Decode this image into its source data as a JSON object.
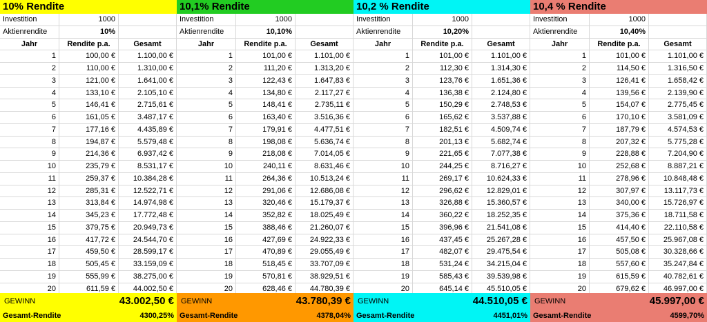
{
  "labels": {
    "investition": "Investition",
    "aktienrendite": "Aktienrendite",
    "jahr": "Jahr",
    "rendite_pa": "Rendite p.a.",
    "gesamt": "Gesamt",
    "gewinn": "GEWINN",
    "gesamt_rendite": "Gesamt-Rendite"
  },
  "colors": {
    "yellow": "#ffff00",
    "green": "#22cc22",
    "cyan": "#00f5f5",
    "salmon": "#ea7d72",
    "orange": "#ff9800"
  },
  "blocks": [
    {
      "title": "10% Rendite",
      "title_color": "#ffff00",
      "footer_color": "#ffff00",
      "investition": "1000",
      "aktienrendite": "10%",
      "gewinn": "43.002,50 €",
      "gesamt_rendite": "4300,25%",
      "rows": [
        [
          "1",
          "100,00 €",
          "1.100,00 €"
        ],
        [
          "2",
          "110,00 €",
          "1.310,00 €"
        ],
        [
          "3",
          "121,00 €",
          "1.641,00 €"
        ],
        [
          "4",
          "133,10 €",
          "2.105,10 €"
        ],
        [
          "5",
          "146,41 €",
          "2.715,61 €"
        ],
        [
          "6",
          "161,05 €",
          "3.487,17 €"
        ],
        [
          "7",
          "177,16 €",
          "4.435,89 €"
        ],
        [
          "8",
          "194,87 €",
          "5.579,48 €"
        ],
        [
          "9",
          "214,36 €",
          "6.937,42 €"
        ],
        [
          "10",
          "235,79 €",
          "8.531,17 €"
        ],
        [
          "11",
          "259,37 €",
          "10.384,28 €"
        ],
        [
          "12",
          "285,31 €",
          "12.522,71 €"
        ],
        [
          "13",
          "313,84 €",
          "14.974,98 €"
        ],
        [
          "14",
          "345,23 €",
          "17.772,48 €"
        ],
        [
          "15",
          "379,75 €",
          "20.949,73 €"
        ],
        [
          "16",
          "417,72 €",
          "24.544,70 €"
        ],
        [
          "17",
          "459,50 €",
          "28.599,17 €"
        ],
        [
          "18",
          "505,45 €",
          "33.159,09 €"
        ],
        [
          "19",
          "555,99 €",
          "38.275,00 €"
        ],
        [
          "20",
          "611,59 €",
          "44.002,50 €"
        ]
      ]
    },
    {
      "title": "10,1% Rendite",
      "title_color": "#22cc22",
      "footer_color": "#ff9800",
      "investition": "1000",
      "aktienrendite": "10,10%",
      "gewinn": "43.780,39 €",
      "gesamt_rendite": "4378,04%",
      "rows": [
        [
          "1",
          "101,00 €",
          "1.101,00 €"
        ],
        [
          "2",
          "111,20 €",
          "1.313,20 €"
        ],
        [
          "3",
          "122,43 €",
          "1.647,83 €"
        ],
        [
          "4",
          "134,80 €",
          "2.117,27 €"
        ],
        [
          "5",
          "148,41 €",
          "2.735,11 €"
        ],
        [
          "6",
          "163,40 €",
          "3.516,36 €"
        ],
        [
          "7",
          "179,91 €",
          "4.477,51 €"
        ],
        [
          "8",
          "198,08 €",
          "5.636,74 €"
        ],
        [
          "9",
          "218,08 €",
          "7.014,05 €"
        ],
        [
          "10",
          "240,11 €",
          "8.631,46 €"
        ],
        [
          "11",
          "264,36 €",
          "10.513,24 €"
        ],
        [
          "12",
          "291,06 €",
          "12.686,08 €"
        ],
        [
          "13",
          "320,46 €",
          "15.179,37 €"
        ],
        [
          "14",
          "352,82 €",
          "18.025,49 €"
        ],
        [
          "15",
          "388,46 €",
          "21.260,07 €"
        ],
        [
          "16",
          "427,69 €",
          "24.922,33 €"
        ],
        [
          "17",
          "470,89 €",
          "29.055,49 €"
        ],
        [
          "18",
          "518,45 €",
          "33.707,09 €"
        ],
        [
          "19",
          "570,81 €",
          "38.929,51 €"
        ],
        [
          "20",
          "628,46 €",
          "44.780,39 €"
        ]
      ]
    },
    {
      "title": "10,2 % Rendite",
      "title_color": "#00f5f5",
      "footer_color": "#00f5f5",
      "investition": "1000",
      "aktienrendite": "10,20%",
      "gewinn": "44.510,05 €",
      "gesamt_rendite": "4451,01%",
      "rows": [
        [
          "1",
          "101,00 €",
          "1.101,00 €"
        ],
        [
          "2",
          "112,30 €",
          "1.314,30 €"
        ],
        [
          "3",
          "123,76 €",
          "1.651,36 €"
        ],
        [
          "4",
          "136,38 €",
          "2.124,80 €"
        ],
        [
          "5",
          "150,29 €",
          "2.748,53 €"
        ],
        [
          "6",
          "165,62 €",
          "3.537,88 €"
        ],
        [
          "7",
          "182,51 €",
          "4.509,74 €"
        ],
        [
          "8",
          "201,13 €",
          "5.682,74 €"
        ],
        [
          "9",
          "221,65 €",
          "7.077,38 €"
        ],
        [
          "10",
          "244,25 €",
          "8.716,27 €"
        ],
        [
          "11",
          "269,17 €",
          "10.624,33 €"
        ],
        [
          "12",
          "296,62 €",
          "12.829,01 €"
        ],
        [
          "13",
          "326,88 €",
          "15.360,57 €"
        ],
        [
          "14",
          "360,22 €",
          "18.252,35 €"
        ],
        [
          "15",
          "396,96 €",
          "21.541,08 €"
        ],
        [
          "16",
          "437,45 €",
          "25.267,28 €"
        ],
        [
          "17",
          "482,07 €",
          "29.475,54 €"
        ],
        [
          "18",
          "531,24 €",
          "34.215,04 €"
        ],
        [
          "19",
          "585,43 €",
          "39.539,98 €"
        ],
        [
          "20",
          "645,14 €",
          "45.510,05 €"
        ]
      ]
    },
    {
      "title": "10,4 % Rendite",
      "title_color": "#ea7d72",
      "footer_color": "#ea7d72",
      "investition": "1000",
      "aktienrendite": "10,40%",
      "gewinn": "45.997,00 €",
      "gesamt_rendite": "4599,70%",
      "rows": [
        [
          "1",
          "101,00 €",
          "1.101,00 €"
        ],
        [
          "2",
          "114,50 €",
          "1.316,50 €"
        ],
        [
          "3",
          "126,41 €",
          "1.658,42 €"
        ],
        [
          "4",
          "139,56 €",
          "2.139,90 €"
        ],
        [
          "5",
          "154,07 €",
          "2.775,45 €"
        ],
        [
          "6",
          "170,10 €",
          "3.581,09 €"
        ],
        [
          "7",
          "187,79 €",
          "4.574,53 €"
        ],
        [
          "8",
          "207,32 €",
          "5.775,28 €"
        ],
        [
          "9",
          "228,88 €",
          "7.204,90 €"
        ],
        [
          "10",
          "252,68 €",
          "8.887,21 €"
        ],
        [
          "11",
          "278,96 €",
          "10.848,48 €"
        ],
        [
          "12",
          "307,97 €",
          "13.117,73 €"
        ],
        [
          "13",
          "340,00 €",
          "15.726,97 €"
        ],
        [
          "14",
          "375,36 €",
          "18.711,58 €"
        ],
        [
          "15",
          "414,40 €",
          "22.110,58 €"
        ],
        [
          "16",
          "457,50 €",
          "25.967,08 €"
        ],
        [
          "17",
          "505,08 €",
          "30.328,66 €"
        ],
        [
          "18",
          "557,60 €",
          "35.247,84 €"
        ],
        [
          "19",
          "615,59 €",
          "40.782,61 €"
        ],
        [
          "20",
          "679,62 €",
          "46.997,00 €"
        ]
      ]
    }
  ]
}
